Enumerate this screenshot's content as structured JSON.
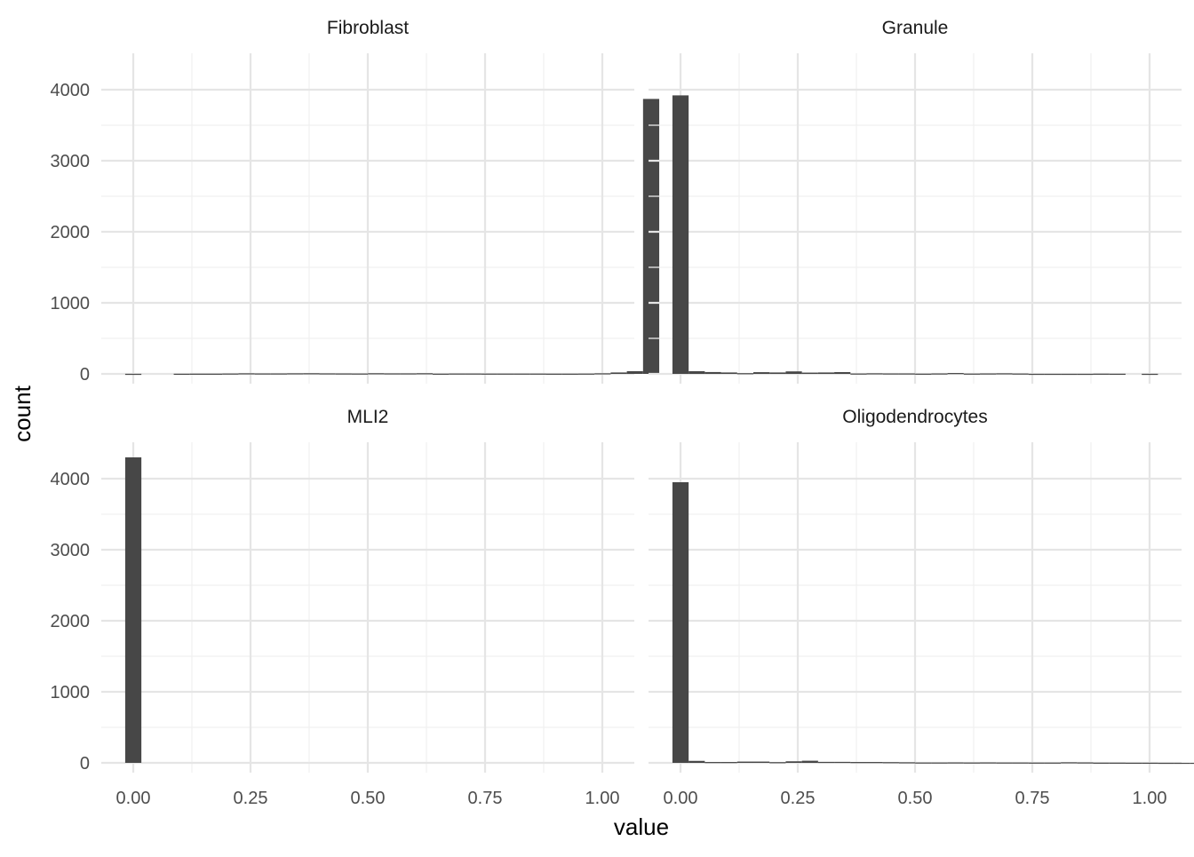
{
  "chart_data": {
    "type": "bar",
    "xlabel": "value",
    "ylabel": "count",
    "xlim": [
      -0.05,
      1.05
    ],
    "ylim": [
      0,
      4500
    ],
    "x_ticks": [
      "0.00",
      "0.25",
      "0.50",
      "0.75",
      "1.00"
    ],
    "y_ticks": [
      "0",
      "1000",
      "2000",
      "3000",
      "4000"
    ],
    "grid": true,
    "bar_color": "#474747",
    "bin_width": 0.0345,
    "bin_start": -0.0172,
    "panels": [
      {
        "title": "Fibroblast",
        "counts": [
          1,
          0,
          0,
          2,
          3,
          3,
          5,
          8,
          6,
          6,
          8,
          9,
          7,
          6,
          5,
          9,
          7,
          7,
          9,
          3,
          5,
          5,
          4,
          4,
          4,
          4,
          3,
          3,
          4,
          8,
          20,
          38,
          3870
        ]
      },
      {
        "title": "Granule",
        "counts": [
          3920,
          38,
          26,
          20,
          10,
          24,
          20,
          35,
          18,
          20,
          25,
          5,
          8,
          6,
          6,
          3,
          6,
          12,
          4,
          6,
          8,
          5,
          1,
          1,
          1,
          1,
          3,
          2,
          0,
          1,
          0,
          0,
          0
        ]
      },
      {
        "title": "MLI2",
        "counts": [
          4300,
          0,
          0,
          0,
          0,
          0,
          0,
          0,
          0,
          0,
          0,
          0,
          0,
          0,
          0,
          0,
          0,
          0,
          0,
          0,
          0,
          0,
          0,
          0,
          0,
          0,
          0,
          0,
          0,
          0,
          0,
          0,
          0
        ]
      },
      {
        "title": "Oligodendrocytes",
        "counts": [
          3950,
          28,
          12,
          12,
          18,
          18,
          10,
          22,
          30,
          14,
          14,
          12,
          12,
          10,
          8,
          5,
          5,
          6,
          5,
          6,
          5,
          5,
          4,
          4,
          8,
          6,
          3,
          3,
          2,
          2,
          1,
          1,
          1
        ]
      }
    ]
  }
}
